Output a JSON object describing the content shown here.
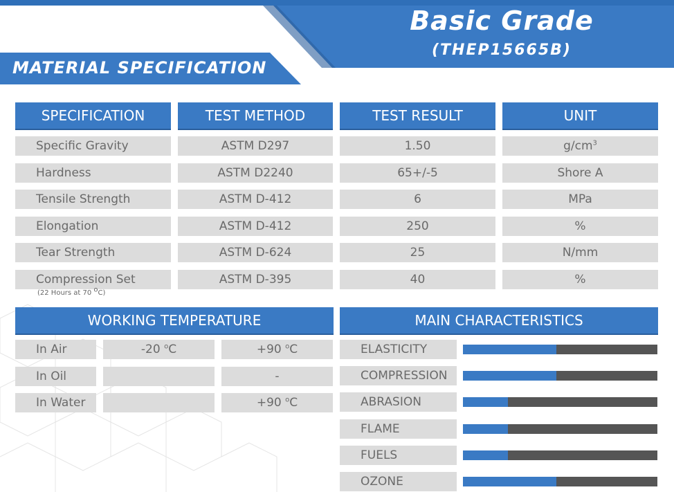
{
  "header": {
    "title": "Basic Grade",
    "code": "(THEP15665B)",
    "section": "MATERIAL SPECIFICATION"
  },
  "colors": {
    "accent": "#3a7ac4",
    "cell": "#dcdcdc",
    "bar_track": "#555555"
  },
  "spec_table": {
    "headers": [
      "SPECIFICATION",
      "TEST METHOD",
      "TEST RESULT",
      "UNIT"
    ],
    "rows": [
      {
        "spec": "Specific Gravity",
        "method": "ASTM D297",
        "result": "1.50",
        "unit": "g/cm",
        "unit_sup": "3"
      },
      {
        "spec": "Hardness",
        "method": "ASTM D2240",
        "result": "65+/-5",
        "unit": "Shore A",
        "unit_sup": ""
      },
      {
        "spec": "Tensile Strength",
        "method": "ASTM D-412",
        "result": "6",
        "unit": "MPa",
        "unit_sup": ""
      },
      {
        "spec": "Elongation",
        "method": "ASTM D-412",
        "result": "250",
        "unit": "%",
        "unit_sup": ""
      },
      {
        "spec": "Tear Strength",
        "method": "ASTM D-624",
        "result": "25",
        "unit": "N/mm",
        "unit_sup": ""
      },
      {
        "spec": "Compression Set",
        "method": "ASTM D-395",
        "result": "40",
        "unit": "%",
        "unit_sup": ""
      }
    ],
    "note_prefix": "(22 Hours at 70 ",
    "note_sup": "o",
    "note_suffix": "C)"
  },
  "working_temperature": {
    "header": "WORKING TEMPERATURE",
    "deg": "o",
    "rows": [
      {
        "label": "In Air",
        "min": "-20 ",
        "min_unit": "C",
        "max": "+90 ",
        "max_unit": "C"
      },
      {
        "label": "In Oil",
        "min": "",
        "min_unit": "",
        "max": "-",
        "max_unit": ""
      },
      {
        "label": "In Water",
        "min": "",
        "min_unit": "",
        "max": "+90 ",
        "max_unit": "C"
      }
    ]
  },
  "main_characteristics": {
    "header": "MAIN CHARACTERISTICS",
    "items": [
      {
        "label": "ELASTICITY",
        "level": 0.48
      },
      {
        "label": "COMPRESSION",
        "level": 0.48
      },
      {
        "label": "ABRASION",
        "level": 0.23
      },
      {
        "label": "FLAME",
        "level": 0.23
      },
      {
        "label": "FUELS",
        "level": 0.23
      },
      {
        "label": "OZONE",
        "level": 0.48
      }
    ]
  }
}
